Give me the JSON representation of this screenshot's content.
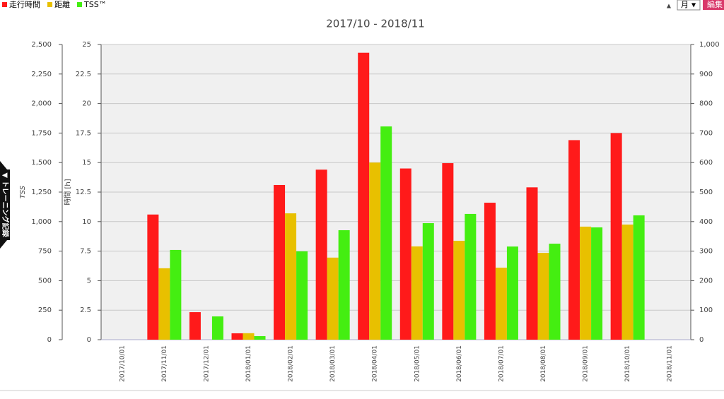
{
  "controls": {
    "period": "月",
    "period_arrow": "▼",
    "edit": "編集",
    "side_tab": "▼ トレーニング記録"
  },
  "chart_data": {
    "type": "bar",
    "title": "2017/10 - 2018/11",
    "ylabel": "時間 [h]",
    "y3label": "TSS",
    "categories": [
      "2017/10/01",
      "2017/11/01",
      "2017/12/01",
      "2018/01/01",
      "2018/02/01",
      "2018/03/01",
      "2018/04/01",
      "2018/05/01",
      "2018/06/01",
      "2018/07/01",
      "2018/08/01",
      "2018/09/01",
      "2018/10/01",
      "2018/11/01"
    ],
    "series": [
      {
        "name": "走行時間",
        "color": "#ff1a1a",
        "axis": "y",
        "values": [
          0,
          10.6,
          2.33,
          0.54,
          13.1,
          14.4,
          24.3,
          14.5,
          14.95,
          11.6,
          12.9,
          16.9,
          17.5,
          0
        ]
      },
      {
        "name": "距離",
        "color": "#e8c000",
        "axis": "y2",
        "values": [
          0,
          242,
          0,
          22,
          428,
          278,
          600,
          316,
          335,
          244,
          294,
          383,
          390,
          0
        ]
      },
      {
        "name": "TSS™",
        "color": "#44ee11",
        "axis": "y3",
        "values": [
          0,
          760,
          197,
          30,
          748,
          927,
          1806,
          987,
          1065,
          789,
          813,
          951,
          1053,
          0
        ]
      }
    ],
    "ylim": [
      0,
      25
    ],
    "yticks": [
      0,
      2.5,
      5,
      7.5,
      10,
      12.5,
      15,
      17.5,
      20,
      22.5,
      25
    ],
    "y2lim": [
      0,
      1000
    ],
    "y2ticks": [
      0,
      100,
      200,
      300,
      400,
      500,
      600,
      700,
      800,
      900,
      {
        "value": 1000,
        "label": "1,000"
      }
    ],
    "y3lim": [
      0,
      2500
    ],
    "y3ticks": [
      0,
      250,
      500,
      750,
      {
        "value": 1000,
        "label": "1,000"
      },
      {
        "value": 1250,
        "label": "1,250"
      },
      {
        "value": 1500,
        "label": "1,500"
      },
      {
        "value": 1750,
        "label": "1,750"
      },
      {
        "value": 2000,
        "label": "2,000"
      },
      {
        "value": 2250,
        "label": "2,250"
      },
      {
        "value": 2500,
        "label": "2,500"
      }
    ],
    "grid": true,
    "legend": "top-left"
  }
}
